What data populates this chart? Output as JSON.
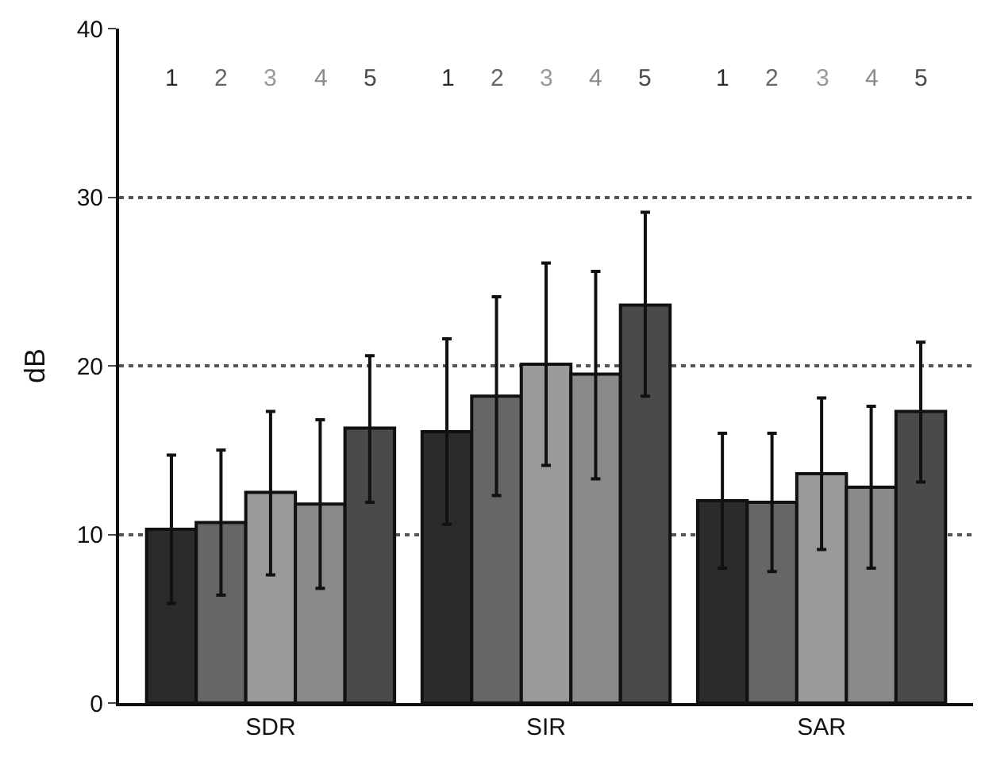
{
  "chart_data": {
    "type": "bar",
    "ylabel": "dB",
    "categories": [
      "SDR",
      "SIR",
      "SAR"
    ],
    "series": [
      {
        "name": "1",
        "color": "#2b2b2b",
        "values": [
          10.3,
          16.1,
          12.0
        ],
        "errors": [
          [
            5.9,
            14.7
          ],
          [
            10.6,
            21.6
          ],
          [
            8.0,
            16.0
          ]
        ]
      },
      {
        "name": "2",
        "color": "#666666",
        "values": [
          10.7,
          18.2,
          11.9
        ],
        "errors": [
          [
            6.4,
            15.0
          ],
          [
            12.3,
            24.1
          ],
          [
            7.8,
            16.0
          ]
        ]
      },
      {
        "name": "3",
        "color": "#9a9a9a",
        "values": [
          12.5,
          20.1,
          13.6
        ],
        "errors": [
          [
            7.6,
            17.3
          ],
          [
            14.1,
            26.1
          ],
          [
            9.1,
            18.1
          ]
        ]
      },
      {
        "name": "4",
        "color": "#8a8a8a",
        "values": [
          11.8,
          19.5,
          12.8
        ],
        "errors": [
          [
            6.8,
            16.8
          ],
          [
            13.3,
            25.6
          ],
          [
            8.0,
            17.6
          ]
        ]
      },
      {
        "name": "5",
        "color": "#4a4a4a",
        "values": [
          16.3,
          23.6,
          17.3
        ],
        "errors": [
          [
            11.9,
            20.6
          ],
          [
            18.2,
            29.1
          ],
          [
            13.1,
            21.4
          ]
        ]
      }
    ],
    "ylim": [
      0,
      40
    ],
    "yticks": [
      0,
      10,
      20,
      30,
      40
    ],
    "grid": "y",
    "legend": false
  }
}
